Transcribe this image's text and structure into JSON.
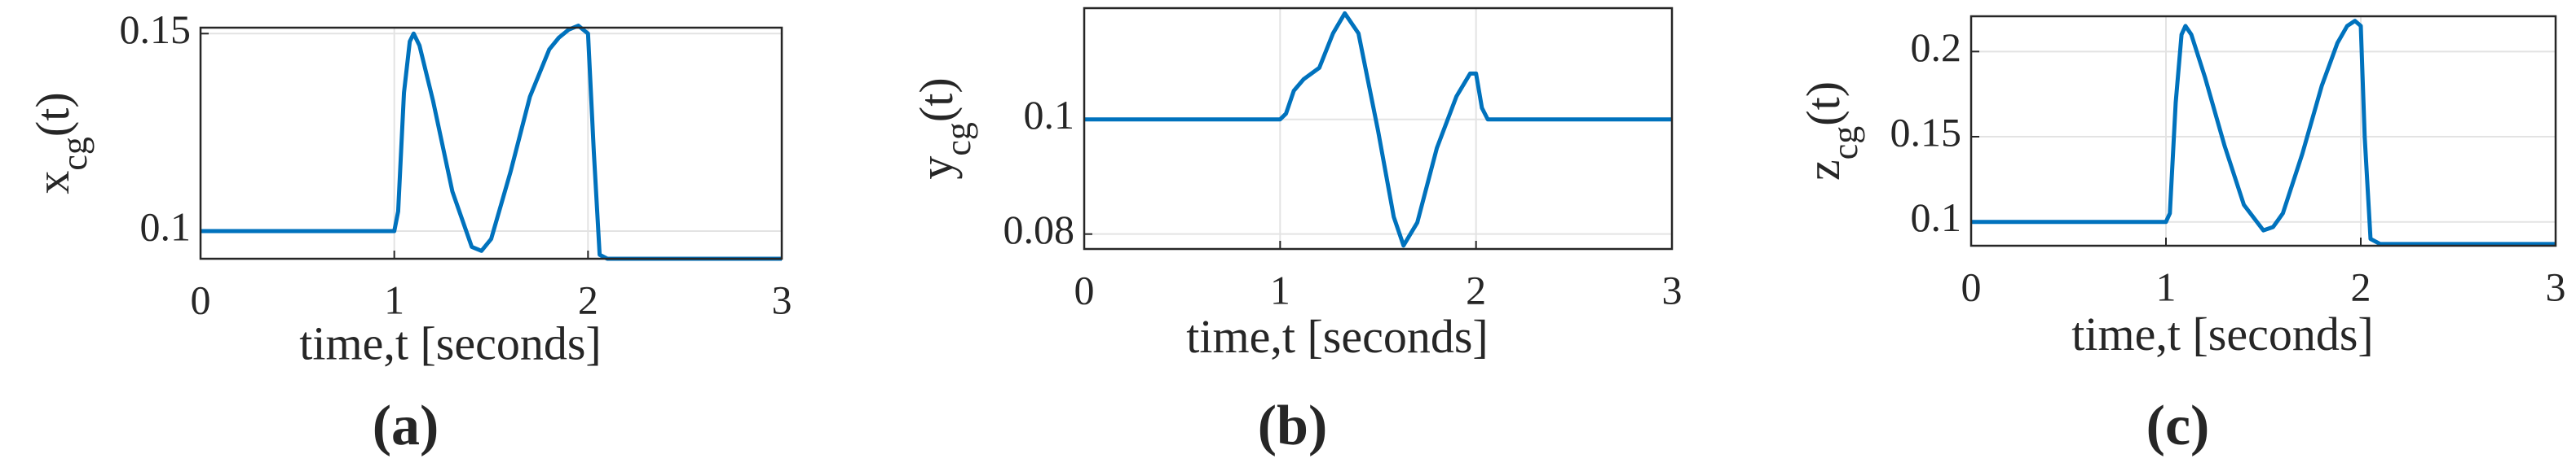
{
  "chart_data": [
    {
      "type": "line",
      "caption": "(a)",
      "xlabel": "time,t [seconds]",
      "ylabel": [
        "x",
        "cg",
        "(t)"
      ],
      "xlim": [
        0,
        3
      ],
      "xticks": [
        0,
        1,
        2,
        3
      ],
      "ylim": [
        0.093,
        0.1515
      ],
      "yticks": [
        0.1,
        0.15
      ],
      "grid": true,
      "series": [
        {
          "color": "#0072bd",
          "x": [
            0,
            1,
            1.02,
            1.05,
            1.08,
            1.1,
            1.13,
            1.2,
            1.3,
            1.4,
            1.45,
            1.5,
            1.6,
            1.7,
            1.8,
            1.85,
            1.9,
            1.95,
            2.0,
            2.03,
            2.06,
            2.1,
            3
          ],
          "values": [
            0.1,
            0.1,
            0.105,
            0.135,
            0.148,
            0.15,
            0.147,
            0.133,
            0.11,
            0.096,
            0.095,
            0.098,
            0.115,
            0.134,
            0.146,
            0.149,
            0.151,
            0.152,
            0.15,
            0.12,
            0.094,
            0.093,
            0.093
          ]
        }
      ]
    },
    {
      "type": "line",
      "caption": "(b)",
      "xlabel": "time,t [seconds]",
      "ylabel": [
        "y",
        "cg",
        "(t)"
      ],
      "xlim": [
        0,
        3
      ],
      "xticks": [
        0,
        1,
        2,
        3
      ],
      "ylim": [
        0.0774,
        0.1194
      ],
      "yticks": [
        0.08,
        0.1
      ],
      "grid": true,
      "series": [
        {
          "color": "#0072bd",
          "x": [
            0,
            1,
            1.03,
            1.07,
            1.12,
            1.2,
            1.27,
            1.33,
            1.4,
            1.5,
            1.58,
            1.63,
            1.7,
            1.8,
            1.9,
            1.97,
            2.0,
            2.03,
            2.06,
            3
          ],
          "values": [
            0.1,
            0.1,
            0.101,
            0.105,
            0.107,
            0.109,
            0.115,
            0.1185,
            0.115,
            0.098,
            0.083,
            0.078,
            0.082,
            0.095,
            0.104,
            0.108,
            0.108,
            0.102,
            0.1,
            0.1
          ]
        }
      ]
    },
    {
      "type": "line",
      "caption": "(c)",
      "xlabel": "time,t [seconds]",
      "ylabel": [
        "z",
        "cg",
        "(t)"
      ],
      "xlim": [
        0,
        3
      ],
      "xticks": [
        0,
        1,
        2,
        3
      ],
      "ylim": [
        0.086,
        0.2207
      ],
      "yticks": [
        0.1,
        0.15,
        0.2
      ],
      "grid": true,
      "series": [
        {
          "color": "#0072bd",
          "x": [
            0,
            1,
            1.02,
            1.05,
            1.08,
            1.1,
            1.13,
            1.2,
            1.3,
            1.4,
            1.5,
            1.55,
            1.6,
            1.7,
            1.8,
            1.88,
            1.93,
            1.97,
            2.0,
            2.02,
            2.05,
            2.1,
            3
          ],
          "values": [
            0.1,
            0.1,
            0.105,
            0.17,
            0.21,
            0.215,
            0.21,
            0.185,
            0.145,
            0.11,
            0.095,
            0.097,
            0.105,
            0.14,
            0.18,
            0.205,
            0.215,
            0.218,
            0.215,
            0.15,
            0.09,
            0.087,
            0.087
          ]
        }
      ]
    }
  ]
}
